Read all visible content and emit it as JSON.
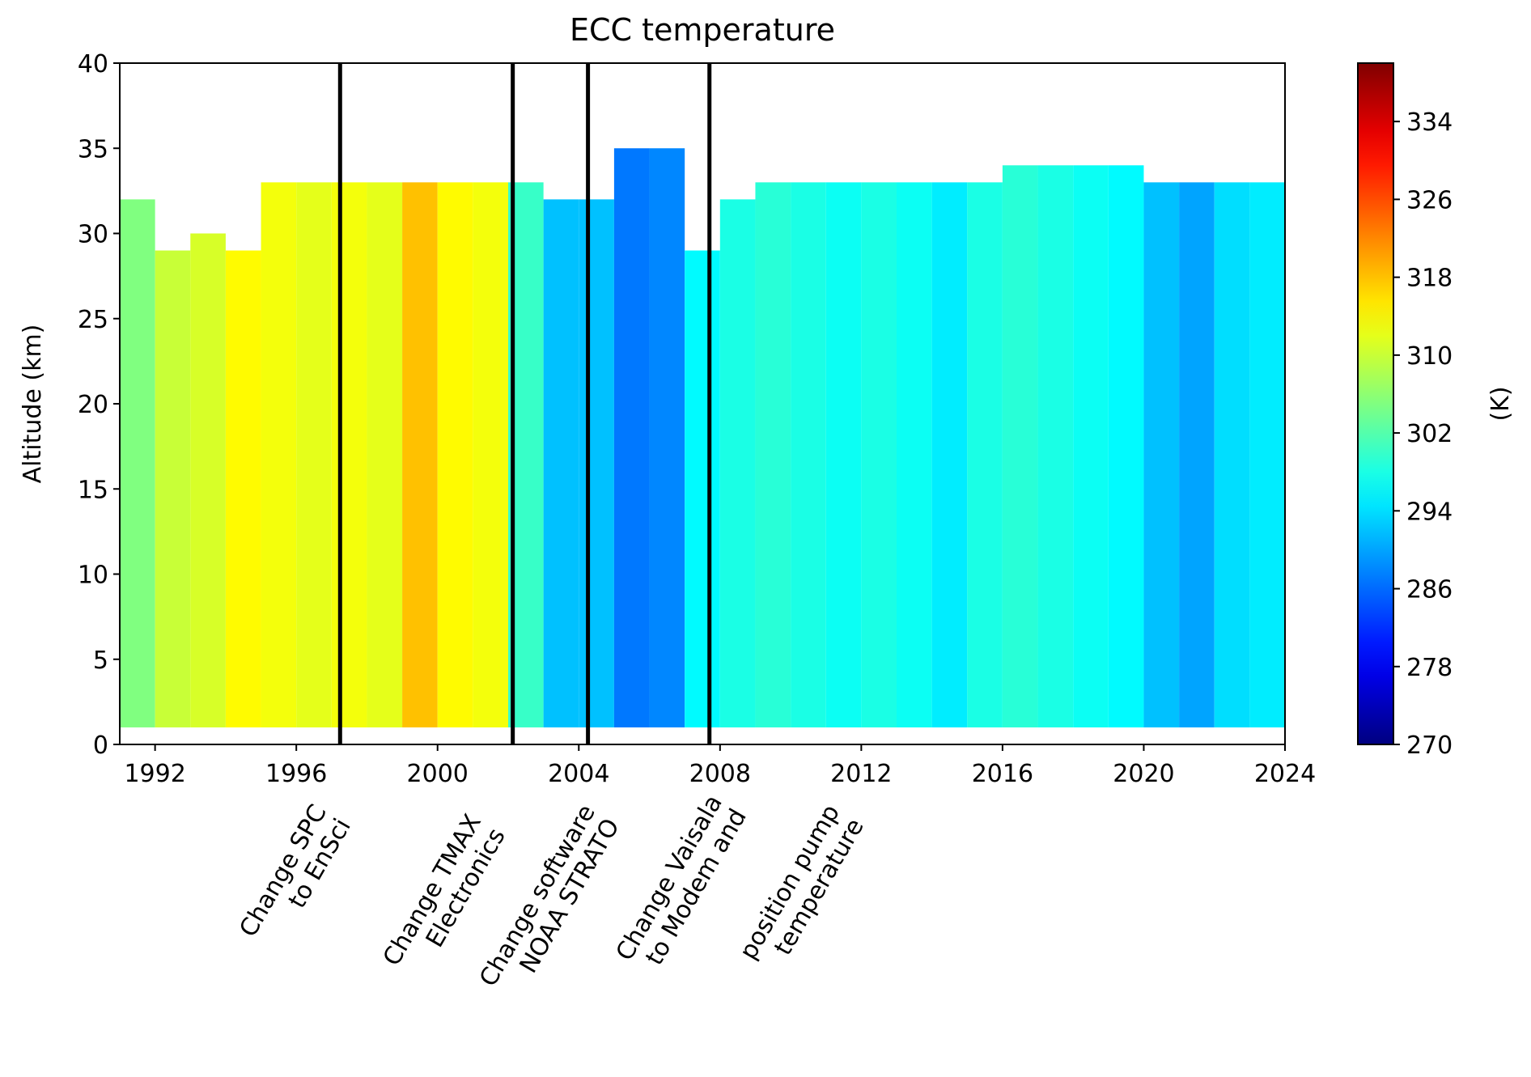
{
  "chart_data": {
    "type": "heatmap",
    "title": "ECC temperature",
    "ylabel": "Altitude (km)",
    "colorbar_label": "(K)",
    "x": [
      1991,
      1992,
      1993,
      1994,
      1995,
      1996,
      1997,
      1998,
      1999,
      2000,
      2001,
      2002,
      2003,
      2004,
      2005,
      2006,
      2007,
      2008,
      2009,
      2010,
      2011,
      2012,
      2013,
      2014,
      2015,
      2016,
      2017,
      2018,
      2019,
      2020,
      2021,
      2022,
      2023
    ],
    "values": [
      305,
      310,
      311,
      314,
      313,
      312,
      313,
      312,
      318,
      314,
      313,
      300,
      292,
      292,
      287,
      288,
      296,
      298,
      299,
      298,
      297,
      298,
      297,
      295,
      298,
      299,
      298,
      297,
      296,
      292,
      290,
      294,
      295
    ],
    "top_altitude": [
      32,
      29,
      30,
      29,
      33,
      33,
      33,
      33,
      33,
      33,
      33,
      33,
      32,
      32,
      35,
      35,
      29,
      32,
      33,
      33,
      33,
      33,
      33,
      33,
      33,
      34,
      34,
      34,
      34,
      33,
      33,
      33,
      33
    ],
    "bottom_altitude": 1,
    "colormap": "jet",
    "xlim": [
      1991,
      2024
    ],
    "xticks": [
      1992,
      1996,
      2000,
      2004,
      2008,
      2012,
      2016,
      2020,
      2024
    ],
    "ylim": [
      0,
      40
    ],
    "yticks": [
      0,
      5,
      10,
      15,
      20,
      25,
      30,
      35,
      40
    ],
    "clim": [
      270,
      340
    ],
    "cticks": [
      270,
      278,
      286,
      294,
      302,
      310,
      318,
      326,
      334
    ],
    "vlines": [
      1997.24,
      2002.13,
      2004.26,
      2007.7
    ],
    "annotations": [
      {
        "lines": [
          "Change SPC",
          "to EnSci"
        ]
      },
      {
        "lines": [
          "Change TMAX",
          "Electronics"
        ]
      },
      {
        "lines": [
          "Change software",
          "NOAA STRATO"
        ]
      },
      {
        "lines": [
          "Change Vaisala",
          "to Modem and"
        ]
      },
      {
        "lines": [
          "position pump",
          "temperature"
        ]
      }
    ]
  }
}
